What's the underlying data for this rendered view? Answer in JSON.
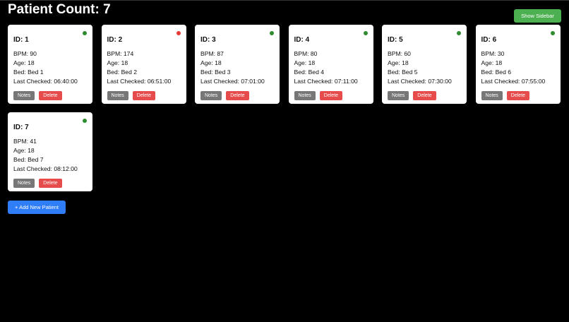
{
  "header": {
    "title": "Patient Count: 7",
    "sidebar_button": "Show Sidebar"
  },
  "labels": {
    "bpm": "BPM: ",
    "age": "Age: ",
    "bed": "Bed: ",
    "last_checked": "Last Checked: ",
    "notes": "Notes",
    "delete": "Delete"
  },
  "status_colors": {
    "normal": "#2e8b2e",
    "alert": "#e53935"
  },
  "patients": [
    {
      "id": "ID: 1",
      "bpm": "90",
      "age": "18",
      "bed": "Bed 1",
      "last_checked": "06:40:00",
      "status": "normal"
    },
    {
      "id": "ID: 2",
      "bpm": "174",
      "age": "18",
      "bed": "Bed 2",
      "last_checked": "06:51:00",
      "status": "alert"
    },
    {
      "id": "ID: 3",
      "bpm": "87",
      "age": "18",
      "bed": "Bed 3",
      "last_checked": "07:01:00",
      "status": "normal"
    },
    {
      "id": "ID: 4",
      "bpm": "80",
      "age": "18",
      "bed": "Bed 4",
      "last_checked": "07:11:00",
      "status": "normal"
    },
    {
      "id": "ID: 5",
      "bpm": "60",
      "age": "18",
      "bed": "Bed 5",
      "last_checked": "07:30:00",
      "status": "normal"
    },
    {
      "id": "ID: 6",
      "bpm": "30",
      "age": "18",
      "bed": "Bed 6",
      "last_checked": "07:55:00",
      "status": "normal"
    },
    {
      "id": "ID: 7",
      "bpm": "41",
      "age": "18",
      "bed": "Bed 7",
      "last_checked": "08:12:00",
      "status": "normal"
    }
  ],
  "add_button": "+ Add New Patient"
}
